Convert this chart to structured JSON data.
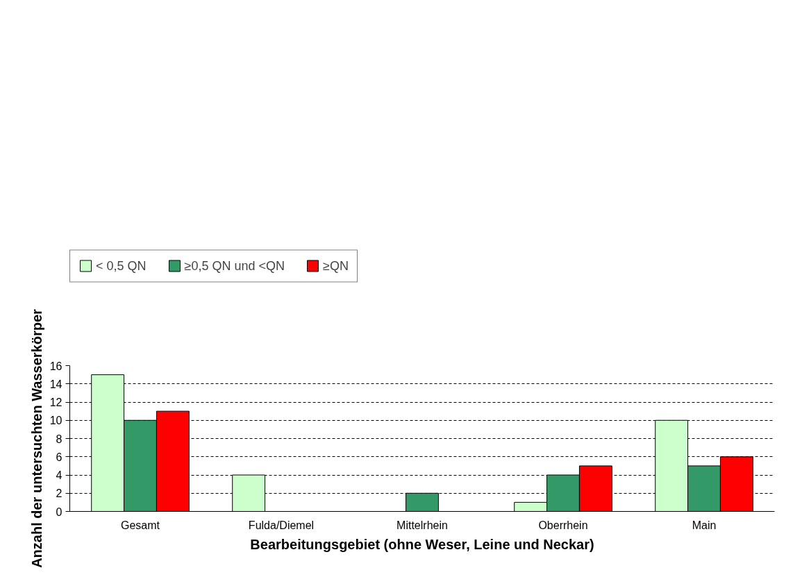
{
  "chart_data": {
    "type": "bar",
    "xlabel": "Bearbeitungsgebiet (ohne Weser, Leine und Neckar)",
    "ylabel": "Anzahl der untersuchten Wasserkörper",
    "categories": [
      "Gesamt",
      "Fulda/Diemel",
      "Mittelrhein",
      "Oberrhein",
      "Main"
    ],
    "series": [
      {
        "name": "< 0,5 QN",
        "color": "#ccffcc",
        "values": [
          15,
          4,
          0,
          1,
          10
        ]
      },
      {
        "name": "≥0,5 QN und <QN",
        "color": "#339966",
        "values": [
          10,
          0,
          2,
          4,
          5
        ]
      },
      {
        "name": "≥QN",
        "color": "#ff0000",
        "values": [
          11,
          0,
          0,
          5,
          6
        ]
      }
    ],
    "ylim": [
      0,
      16
    ],
    "yticks": [
      0,
      2,
      4,
      6,
      8,
      10,
      12,
      14,
      16
    ],
    "grid": "y",
    "legend": "top left"
  }
}
